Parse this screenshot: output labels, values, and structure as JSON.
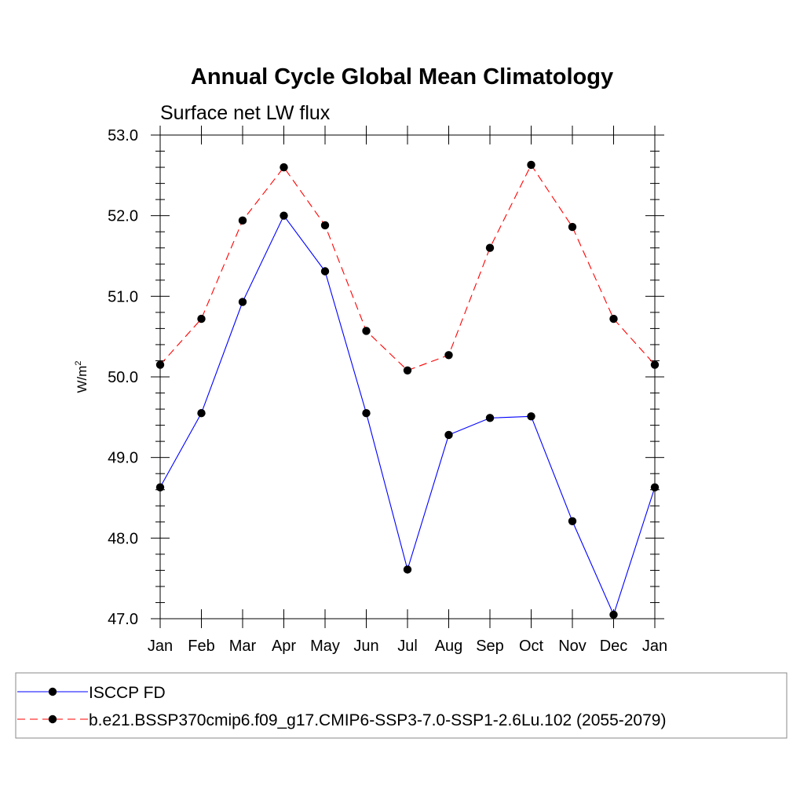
{
  "chart_data": {
    "type": "line",
    "title": "Annual Cycle Global Mean Climatology",
    "subtitle": "Surface net LW flux",
    "ylabel": "W/m",
    "ylabel_sup": "2",
    "xlabel": "",
    "ylim": [
      47.0,
      53.0
    ],
    "yticks": [
      "47.0",
      "48.0",
      "49.0",
      "50.0",
      "51.0",
      "52.0",
      "53.0"
    ],
    "categories": [
      "Jan",
      "Feb",
      "Mar",
      "Apr",
      "May",
      "Jun",
      "Jul",
      "Aug",
      "Sep",
      "Oct",
      "Nov",
      "Dec",
      "Jan"
    ],
    "grid": false,
    "legend_position": "bottom",
    "series": [
      {
        "name": "ISCCP FD",
        "color": "#0000ff",
        "line_style": "solid",
        "values": [
          48.63,
          49.55,
          50.93,
          52.0,
          51.31,
          49.55,
          47.61,
          49.28,
          49.49,
          49.51,
          48.21,
          47.05,
          48.63
        ]
      },
      {
        "name": "b.e21.BSSP370cmip6.f09_g17.CMIP6-SSP3-7.0-SSP1-2.6Lu.102 (2055-2079)",
        "color": "#ff0000",
        "line_style": "dashed",
        "values": [
          50.15,
          50.72,
          51.94,
          52.6,
          51.88,
          50.57,
          50.08,
          50.27,
          51.6,
          52.63,
          51.86,
          50.72,
          50.15
        ]
      }
    ]
  }
}
